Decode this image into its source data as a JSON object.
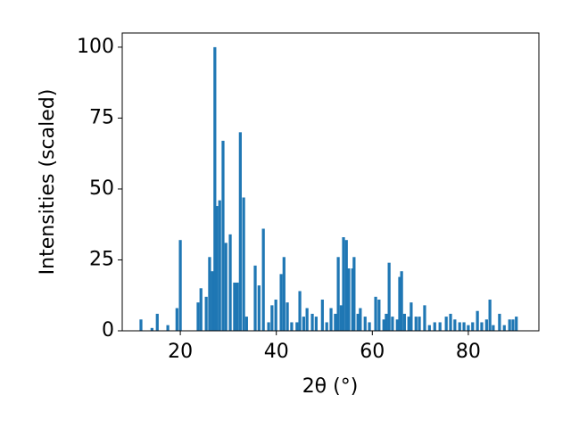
{
  "chart_data": {
    "type": "bar",
    "xlabel": "2θ (°)",
    "ylabel": "Intensities (scaled)",
    "x": [
      11.8,
      14.1,
      15.2,
      17.4,
      19.3,
      20.0,
      23.7,
      24.3,
      25.4,
      26.1,
      26.7,
      27.2,
      27.6,
      28.2,
      28.9,
      29.5,
      30.4,
      31.3,
      31.9,
      32.5,
      33.2,
      33.8,
      35.6,
      36.4,
      37.3,
      38.4,
      39.1,
      39.9,
      41.0,
      41.6,
      42.3,
      43.2,
      44.3,
      44.9,
      45.7,
      46.4,
      47.5,
      48.3,
      49.6,
      50.5,
      51.4,
      52.3,
      52.9,
      53.5,
      54.0,
      54.6,
      55.1,
      55.9,
      56.2,
      57.0,
      57.5,
      58.5,
      59.4,
      60.7,
      61.4,
      62.4,
      62.9,
      63.5,
      64.2,
      65.2,
      65.7,
      66.1,
      66.7,
      67.6,
      68.1,
      69.1,
      69.8,
      70.9,
      71.9,
      73.0,
      74.1,
      75.4,
      76.3,
      77.2,
      78.2,
      79.1,
      80.0,
      80.9,
      81.9,
      82.8,
      83.8,
      84.5,
      85.2,
      86.5,
      87.5,
      88.6,
      89.3,
      90.0
    ],
    "values": [
      4,
      1,
      6,
      2,
      8,
      32,
      10,
      15,
      12,
      26,
      21,
      100,
      44,
      46,
      67,
      31,
      34,
      17,
      17,
      70,
      47,
      5,
      23,
      16,
      36,
      3,
      9,
      11,
      20,
      26,
      10,
      3,
      3,
      14,
      5,
      8,
      6,
      5,
      11,
      3,
      8,
      6,
      26,
      9,
      33,
      32,
      22,
      22,
      26,
      6,
      8,
      5,
      3,
      12,
      11,
      4,
      6,
      24,
      5,
      4,
      19,
      21,
      6,
      5,
      10,
      5,
      5,
      9,
      2,
      3,
      3,
      5,
      6,
      4,
      3,
      3,
      2,
      3,
      7,
      3,
      4,
      11,
      2,
      6,
      2,
      4,
      4,
      5
    ],
    "color": "#1f77b4",
    "xlim": [
      7.9,
      94.7
    ],
    "xticks": [
      20,
      40,
      60,
      80
    ],
    "ylim": [
      0,
      105
    ],
    "yticks": [
      0,
      25,
      50,
      75,
      100
    ]
  }
}
